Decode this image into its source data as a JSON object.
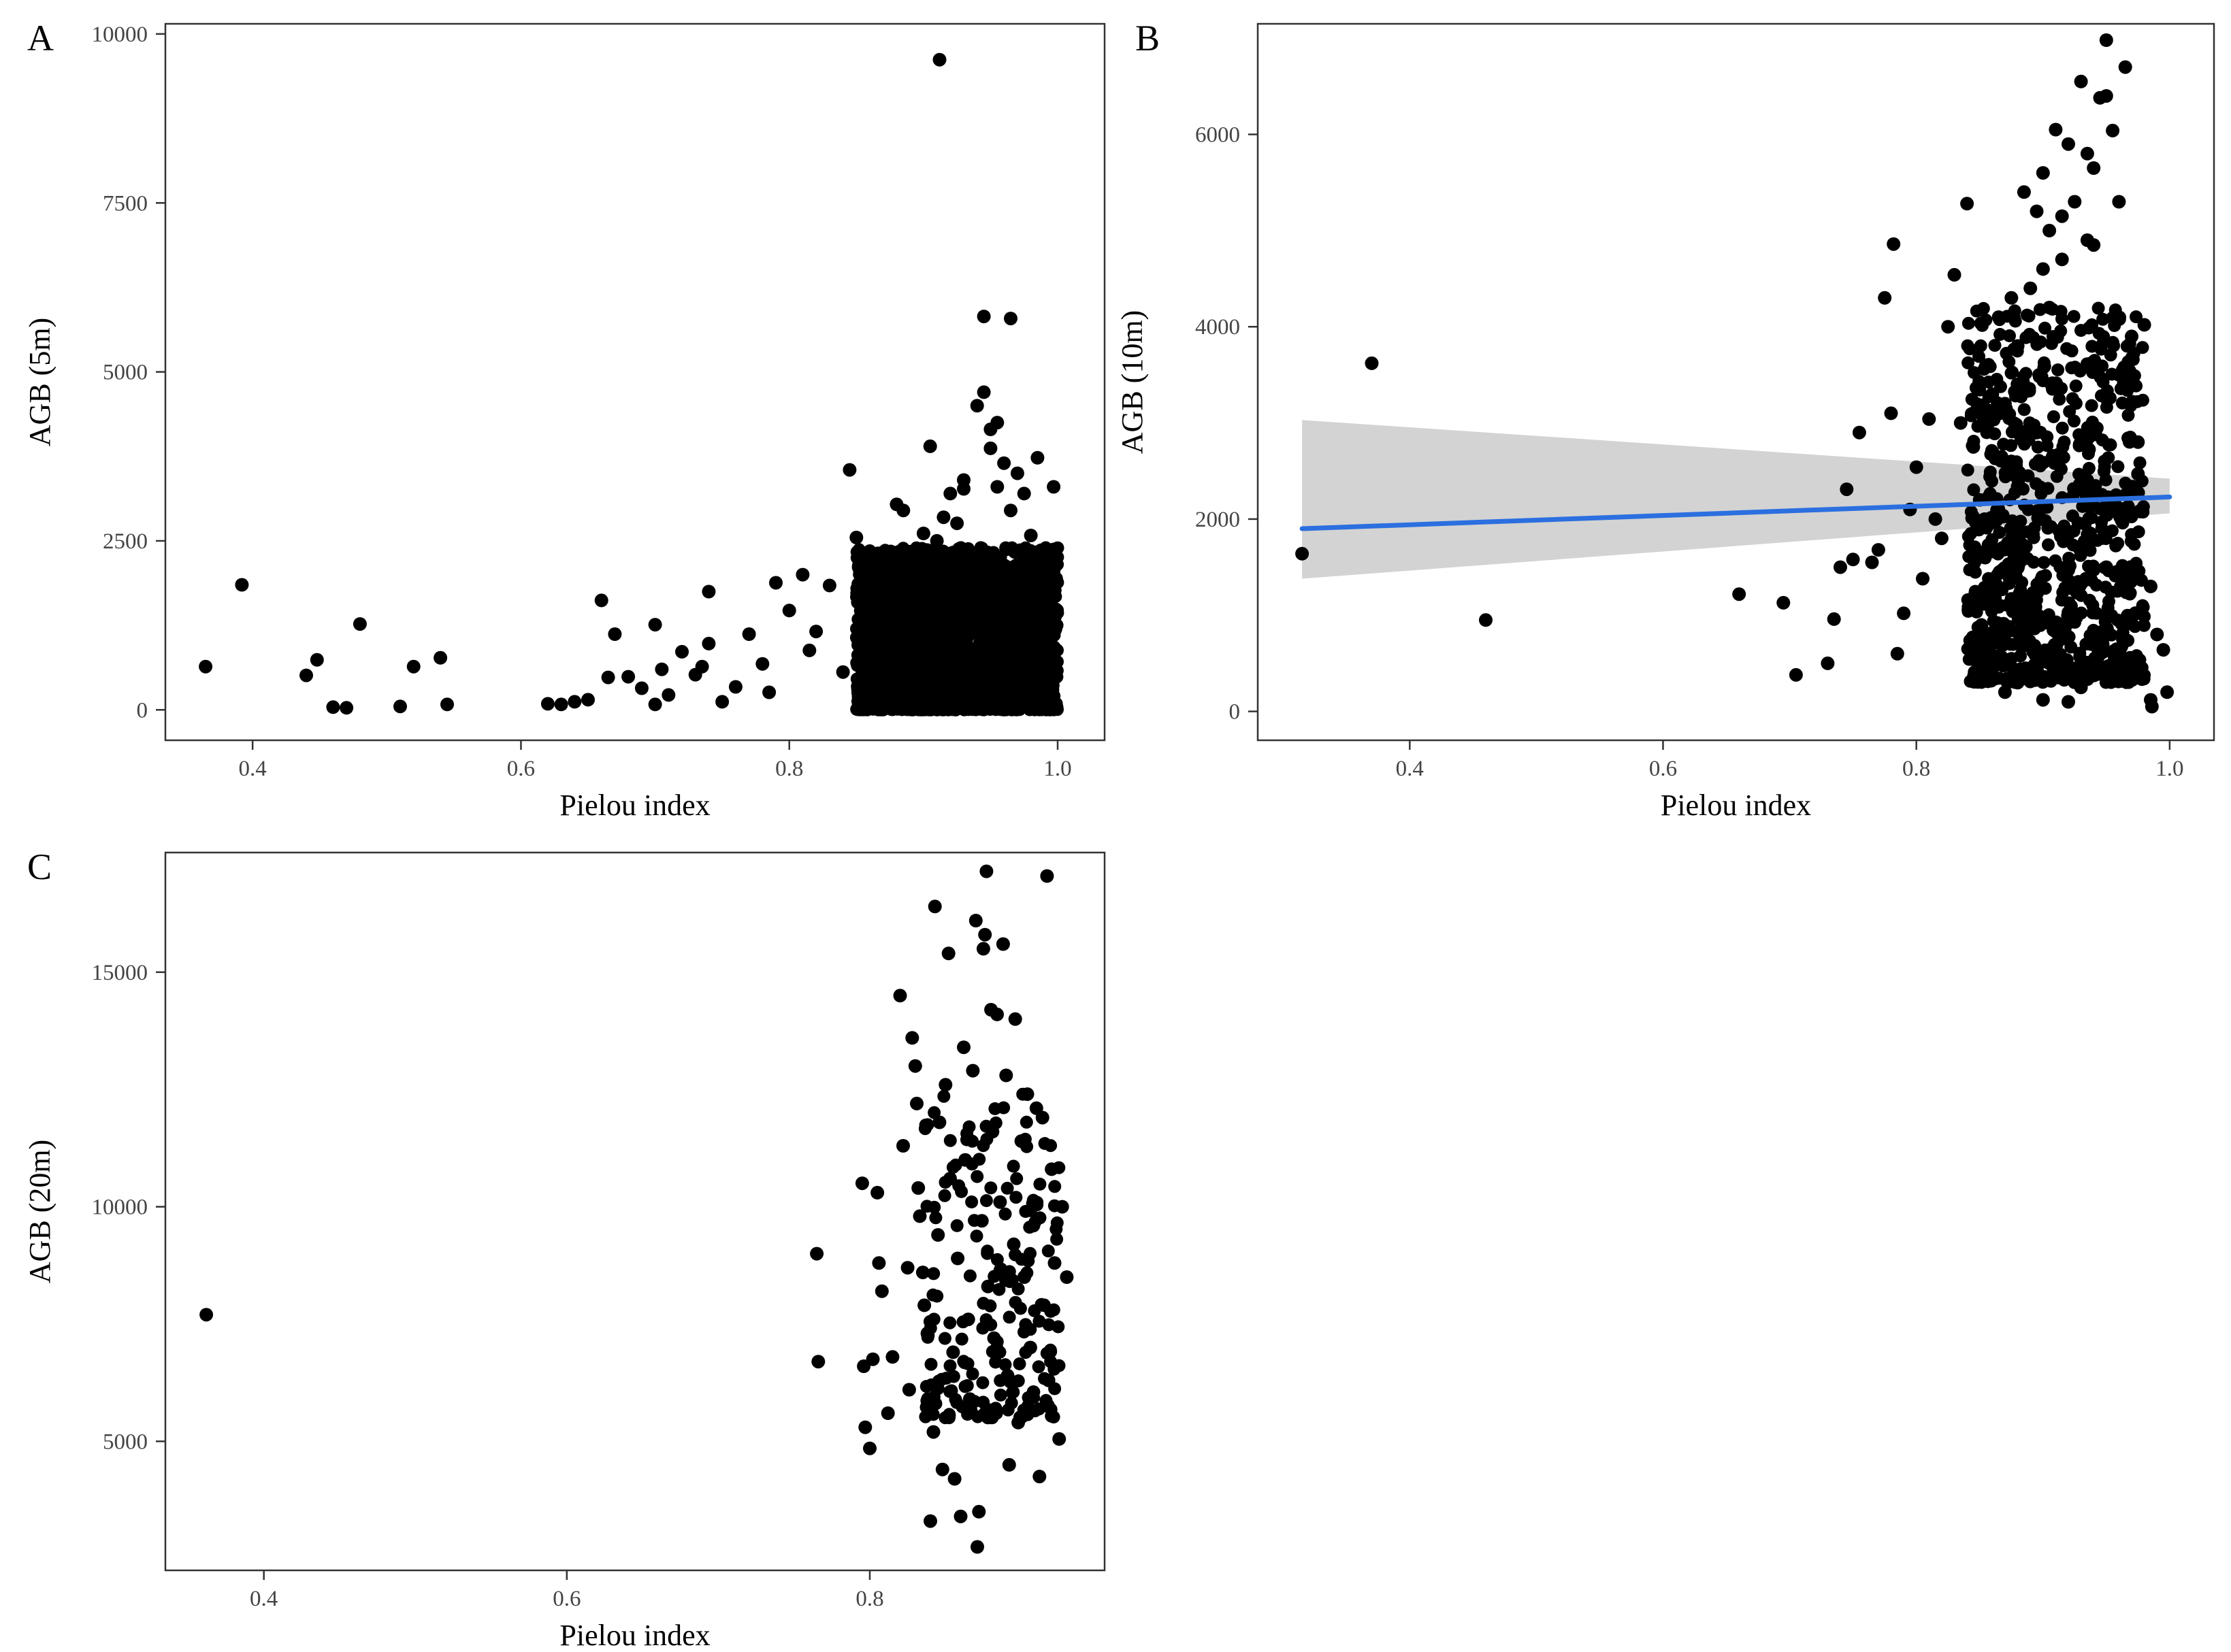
{
  "figure": {
    "panels_shown": [
      "A",
      "B",
      "C"
    ]
  },
  "chart_data": [
    {
      "panel": "A",
      "type": "scatter",
      "title": "",
      "xlabel": "Pielou index",
      "ylabel": "AGB (5m)",
      "xlim": [
        0.335,
        1.035
      ],
      "ylim": [
        -450,
        10150
      ],
      "xticks": [
        0.4,
        0.6,
        0.8,
        1.0
      ],
      "xtick_labels": [
        "0.4",
        "0.6",
        "0.8",
        "1.0"
      ],
      "yticks": [
        0,
        2500,
        5000,
        7500,
        10000
      ],
      "ytick_labels": [
        "0",
        "2500",
        "5000",
        "7500",
        "10000"
      ],
      "grid": false,
      "trend": null,
      "points": [
        [
          0.365,
          640
        ],
        [
          0.392,
          1850
        ],
        [
          0.44,
          510
        ],
        [
          0.448,
          740
        ],
        [
          0.46,
          40
        ],
        [
          0.47,
          30
        ],
        [
          0.48,
          1270
        ],
        [
          0.51,
          50
        ],
        [
          0.52,
          640
        ],
        [
          0.54,
          770
        ],
        [
          0.545,
          80
        ],
        [
          0.62,
          90
        ],
        [
          0.63,
          80
        ],
        [
          0.64,
          120
        ],
        [
          0.65,
          150
        ],
        [
          0.66,
          1620
        ],
        [
          0.665,
          480
        ],
        [
          0.67,
          1120
        ],
        [
          0.68,
          490
        ],
        [
          0.69,
          320
        ],
        [
          0.7,
          80
        ],
        [
          0.7,
          1260
        ],
        [
          0.705,
          600
        ],
        [
          0.71,
          220
        ],
        [
          0.72,
          860
        ],
        [
          0.73,
          520
        ],
        [
          0.735,
          640
        ],
        [
          0.74,
          1750
        ],
        [
          0.74,
          980
        ],
        [
          0.75,
          120
        ],
        [
          0.76,
          340
        ],
        [
          0.77,
          1120
        ],
        [
          0.78,
          680
        ],
        [
          0.785,
          260
        ],
        [
          0.79,
          1880
        ],
        [
          0.8,
          1470
        ],
        [
          0.81,
          2000
        ],
        [
          0.815,
          880
        ],
        [
          0.82,
          1160
        ],
        [
          0.83,
          1840
        ],
        [
          0.84,
          560
        ],
        [
          0.845,
          3550
        ],
        [
          0.85,
          2550
        ],
        [
          0.86,
          1900
        ],
        [
          0.87,
          2250
        ],
        [
          0.875,
          1430
        ],
        [
          0.88,
          3040
        ],
        [
          0.885,
          2950
        ],
        [
          0.89,
          2340
        ],
        [
          0.9,
          2610
        ],
        [
          0.905,
          3900
        ],
        [
          0.91,
          2500
        ],
        [
          0.915,
          2850
        ],
        [
          0.92,
          3200
        ],
        [
          0.925,
          2760
        ],
        [
          0.93,
          3400
        ],
        [
          0.935,
          2050
        ],
        [
          0.94,
          4500
        ],
        [
          0.945,
          4700
        ],
        [
          0.95,
          4150
        ],
        [
          0.955,
          3300
        ],
        [
          0.96,
          3650
        ],
        [
          0.965,
          2950
        ],
        [
          0.97,
          3500
        ],
        [
          0.975,
          3200
        ],
        [
          0.98,
          2580
        ],
        [
          0.985,
          3730
        ],
        [
          0.99,
          2200
        ],
        [
          0.997,
          3300
        ],
        [
          0.998,
          2120
        ],
        [
          0.945,
          5820
        ],
        [
          0.965,
          5790
        ],
        [
          0.912,
          9620
        ],
        [
          0.955,
          4250
        ],
        [
          0.93,
          3270
        ],
        [
          0.95,
          3870
        ]
      ],
      "dense_cluster": {
        "x_range": [
          0.85,
          1.0
        ],
        "y_range": [
          0,
          2400
        ],
        "count": 2800
      }
    },
    {
      "panel": "B",
      "type": "scatter",
      "title": "",
      "xlabel": "Pielou index",
      "ylabel": "AGB (10m)",
      "xlim": [
        0.28,
        1.035
      ],
      "ylim": [
        -300,
        7150
      ],
      "xticks": [
        0.4,
        0.6,
        0.8,
        1.0
      ],
      "xtick_labels": [
        "0.4",
        "0.6",
        "0.8",
        "1.0"
      ],
      "yticks": [
        0,
        2000,
        4000,
        6000
      ],
      "ytick_labels": [
        "0",
        "2000",
        "4000",
        "6000"
      ],
      "grid": false,
      "trend": {
        "type": "linear",
        "color": "#2b6fe0",
        "band_color": "#d3d3d3",
        "x": [
          0.315,
          1.0
        ],
        "y": [
          1900,
          2230
        ],
        "ci_low": [
          1380,
          2060
        ],
        "ci_high": [
          3030,
          2420
        ]
      },
      "points": [
        [
          0.315,
          1640
        ],
        [
          0.37,
          3620
        ],
        [
          0.46,
          950
        ],
        [
          0.66,
          1220
        ],
        [
          0.695,
          1130
        ],
        [
          0.705,
          380
        ],
        [
          0.73,
          500
        ],
        [
          0.735,
          960
        ],
        [
          0.74,
          1500
        ],
        [
          0.745,
          2310
        ],
        [
          0.75,
          1580
        ],
        [
          0.755,
          2900
        ],
        [
          0.765,
          1550
        ],
        [
          0.77,
          1680
        ],
        [
          0.775,
          4300
        ],
        [
          0.78,
          3100
        ],
        [
          0.782,
          4860
        ],
        [
          0.785,
          600
        ],
        [
          0.79,
          1020
        ],
        [
          0.795,
          2100
        ],
        [
          0.8,
          2540
        ],
        [
          0.805,
          1380
        ],
        [
          0.81,
          3040
        ],
        [
          0.815,
          2000
        ],
        [
          0.82,
          1800
        ],
        [
          0.825,
          4000
        ],
        [
          0.83,
          4540
        ],
        [
          0.835,
          3000
        ],
        [
          0.84,
          5280
        ],
        [
          0.845,
          2750
        ],
        [
          0.85,
          2200
        ],
        [
          0.855,
          3600
        ],
        [
          0.86,
          1350
        ],
        [
          0.865,
          4100
        ],
        [
          0.87,
          3200
        ],
        [
          0.875,
          2600
        ],
        [
          0.88,
          3800
        ],
        [
          0.885,
          5400
        ],
        [
          0.89,
          4400
        ],
        [
          0.895,
          2900
        ],
        [
          0.9,
          5600
        ],
        [
          0.905,
          5000
        ],
        [
          0.91,
          6050
        ],
        [
          0.915,
          4700
        ],
        [
          0.92,
          5900
        ],
        [
          0.925,
          5300
        ],
        [
          0.93,
          6550
        ],
        [
          0.935,
          4900
        ],
        [
          0.94,
          5650
        ],
        [
          0.945,
          6380
        ],
        [
          0.95,
          6980
        ],
        [
          0.955,
          6040
        ],
        [
          0.96,
          5300
        ],
        [
          0.965,
          6700
        ],
        [
          0.97,
          3900
        ],
        [
          0.975,
          2800
        ],
        [
          0.98,
          4020
        ],
        [
          0.985,
          1300
        ],
        [
          0.99,
          800
        ],
        [
          0.995,
          640
        ],
        [
          0.998,
          200
        ],
        [
          0.985,
          120
        ],
        [
          0.986,
          50
        ],
        [
          0.94,
          4850
        ],
        [
          0.935,
          5800
        ],
        [
          0.95,
          6400
        ],
        [
          0.9,
          4600
        ],
        [
          0.915,
          5150
        ],
        [
          0.895,
          5200
        ],
        [
          0.875,
          4300
        ],
        [
          0.86,
          3300
        ],
        [
          0.845,
          3100
        ],
        [
          0.96,
          3500
        ],
        [
          0.95,
          1500
        ],
        [
          0.92,
          100
        ],
        [
          0.93,
          250
        ],
        [
          0.9,
          120
        ],
        [
          0.88,
          300
        ],
        [
          0.87,
          200
        ],
        [
          0.905,
          4200
        ],
        [
          0.975,
          2470
        ]
      ],
      "dense_cluster": {
        "x_range": [
          0.84,
          0.98
        ],
        "y_range": [
          300,
          4200
        ],
        "count": 850
      }
    },
    {
      "panel": "C",
      "type": "scatter",
      "title": "",
      "xlabel": "Pielou index",
      "ylabel": "AGB (20m)",
      "xlim": [
        0.335,
        0.955
      ],
      "ylim": [
        2250,
        17550
      ],
      "xticks": [
        0.4,
        0.6,
        0.8
      ],
      "xtick_labels": [
        "0.4",
        "0.6",
        "0.8"
      ],
      "yticks": [
        5000,
        10000,
        15000
      ],
      "ytick_labels": [
        "5000",
        "10000",
        "15000"
      ],
      "grid": false,
      "trend": null,
      "points": [
        [
          0.362,
          7700
        ],
        [
          0.765,
          9000
        ],
        [
          0.766,
          6700
        ],
        [
          0.795,
          10500
        ],
        [
          0.796,
          6600
        ],
        [
          0.797,
          5300
        ],
        [
          0.8,
          4850
        ],
        [
          0.802,
          6750
        ],
        [
          0.805,
          10300
        ],
        [
          0.806,
          8800
        ],
        [
          0.808,
          8200
        ],
        [
          0.812,
          5600
        ],
        [
          0.815,
          6800
        ],
        [
          0.82,
          14500
        ],
        [
          0.822,
          11300
        ],
        [
          0.825,
          8700
        ],
        [
          0.826,
          6100
        ],
        [
          0.828,
          13600
        ],
        [
          0.83,
          13000
        ],
        [
          0.831,
          12200
        ],
        [
          0.832,
          10400
        ],
        [
          0.833,
          9800
        ],
        [
          0.835,
          8600
        ],
        [
          0.836,
          7900
        ],
        [
          0.838,
          7300
        ],
        [
          0.84,
          3300
        ],
        [
          0.842,
          5200
        ],
        [
          0.843,
          16400
        ],
        [
          0.845,
          9400
        ],
        [
          0.846,
          11800
        ],
        [
          0.848,
          4400
        ],
        [
          0.85,
          12600
        ],
        [
          0.852,
          15400
        ],
        [
          0.853,
          10600
        ],
        [
          0.855,
          6900
        ],
        [
          0.856,
          4200
        ],
        [
          0.858,
          8900
        ],
        [
          0.86,
          3400
        ],
        [
          0.862,
          13400
        ],
        [
          0.863,
          11000
        ],
        [
          0.865,
          7600
        ],
        [
          0.866,
          5900
        ],
        [
          0.868,
          12900
        ],
        [
          0.87,
          16100
        ],
        [
          0.871,
          2750
        ],
        [
          0.872,
          3500
        ],
        [
          0.874,
          9700
        ],
        [
          0.875,
          15500
        ],
        [
          0.876,
          15800
        ],
        [
          0.877,
          17150
        ],
        [
          0.878,
          8300
        ],
        [
          0.88,
          14200
        ],
        [
          0.881,
          11600
        ],
        [
          0.882,
          7200
        ],
        [
          0.884,
          14100
        ],
        [
          0.886,
          10100
        ],
        [
          0.888,
          15600
        ],
        [
          0.89,
          12800
        ],
        [
          0.891,
          6400
        ],
        [
          0.892,
          4500
        ],
        [
          0.895,
          9200
        ],
        [
          0.896,
          14000
        ],
        [
          0.898,
          5400
        ],
        [
          0.9,
          11400
        ],
        [
          0.902,
          8500
        ],
        [
          0.904,
          12400
        ],
        [
          0.906,
          7000
        ],
        [
          0.908,
          9600
        ],
        [
          0.91,
          12100
        ],
        [
          0.912,
          4250
        ],
        [
          0.914,
          11900
        ],
        [
          0.915,
          7900
        ],
        [
          0.917,
          17050
        ],
        [
          0.918,
          6300
        ],
        [
          0.92,
          10800
        ],
        [
          0.922,
          8800
        ],
        [
          0.925,
          5050
        ],
        [
          0.927,
          10000
        ],
        [
          0.93,
          8500
        ]
      ],
      "dense_cluster": {
        "x_range": [
          0.835,
          0.925
        ],
        "y_range": [
          5500,
          12500
        ],
        "count": 200
      }
    }
  ]
}
